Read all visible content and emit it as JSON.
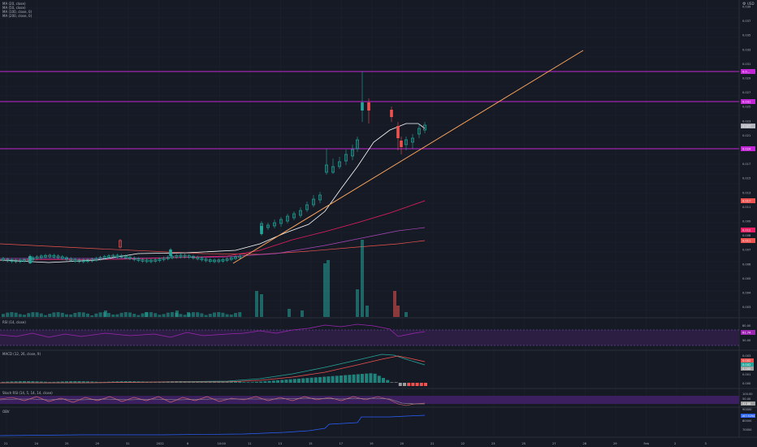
{
  "colors": {
    "background": "#161a25",
    "grid": "#222633",
    "up": "#26a69a",
    "down": "#ef5350",
    "hline": "#c026d3",
    "trendline": "#f7a35c",
    "ma20": "#ffffff",
    "ma50": "#e91e63",
    "ma100": "#ab47bc",
    "ma200": "#ef5350",
    "rsi_line": "#9c27b0",
    "rsi_band": "#4a1d6e",
    "macd_line": "#26a69a",
    "signal_line": "#ef5350"
  },
  "header": {
    "ma_20": "MA (20, close)",
    "ma_50": "MA (50, close)",
    "ma_100": "MA (100, close, 0)",
    "ma_200": "MA (200, close, 0)",
    "currency": "USD"
  },
  "price_axis": {
    "ticks": [
      "0.039",
      "0.037",
      "0.035",
      "0.033",
      "0.031",
      "0.029",
      "0.027",
      "0.025",
      "0.023",
      "0.021",
      "0.019",
      "0.017",
      "0.015",
      "0.013",
      "0.011",
      "0.009",
      "0.008",
      "0.007",
      "0.006",
      "0.005",
      "0.004",
      "0.003"
    ],
    "labels": [
      {
        "value": "0.0…",
        "color": "#c026d3"
      },
      {
        "value": "0.031",
        "color": "#c026d3"
      },
      {
        "value": "0.027",
        "color": "#b2b5be"
      },
      {
        "value": "0.024",
        "color": "#c026d3"
      },
      {
        "value": "0.017",
        "color": "#ef5350"
      },
      {
        "value": "0.012",
        "color": "#e91e63"
      },
      {
        "value": "0.011",
        "color": "#ef5350"
      }
    ]
  },
  "time_axis": {
    "ticks": [
      "21",
      "24",
      "25",
      "29",
      "31",
      "2022",
      "6",
      "10:00",
      "11",
      "13",
      "15",
      "17",
      "19",
      "20",
      "21",
      "22",
      "23",
      "25",
      "27",
      "28",
      "29",
      "Feb",
      "2",
      "3"
    ]
  },
  "chart_data": {
    "type": "candlestick",
    "horizontal_lines": [
      0.0335,
      0.031,
      0.0245
    ],
    "trendline": {
      "from": [
        0.4,
        0.0095
      ],
      "to": [
        0.9,
        0.0365
      ]
    },
    "volume_highlight": "20"
  },
  "panes": {
    "rsi": {
      "title": "RSI (14, close)",
      "ticks": [
        "80.00",
        "50.00"
      ],
      "value": "61.74"
    },
    "macd": {
      "title": "MACD (12, 26, close, 9)",
      "ticks": [
        "0.003",
        "0.002",
        "0.001",
        "0.000"
      ],
      "values": [
        "0.002",
        "0.002",
        "0.000"
      ]
    },
    "stoch": {
      "title": "Stoch RSI (14, 5, 14, 14, close)",
      "ticks": [
        "100.00",
        "50.00"
      ],
      "value": "41.88"
    },
    "obv": {
      "title": "OBV",
      "ticks": [
        "90000",
        "80000",
        "70000"
      ],
      "value": "167.9294"
    }
  }
}
